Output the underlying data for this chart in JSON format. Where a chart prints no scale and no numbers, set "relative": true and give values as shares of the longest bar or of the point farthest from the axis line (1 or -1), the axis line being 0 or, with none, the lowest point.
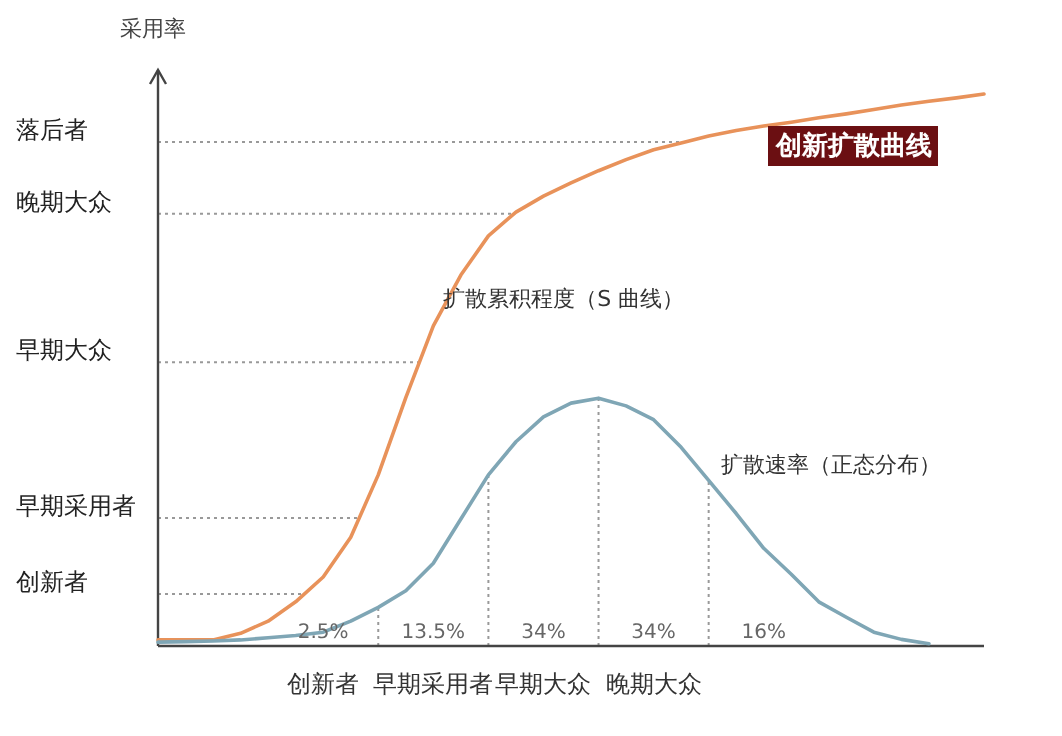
{
  "chart_data": {
    "type": "line",
    "title": "创新扩散曲线",
    "ylabel": "采用率",
    "relative": true,
    "legend": false,
    "marker": "none",
    "line_style": "solid",
    "categories": [
      null,
      null,
      null,
      null,
      null,
      null,
      "创新者",
      null,
      null,
      null,
      "早期采用者",
      null,
      null,
      null,
      "早期大众",
      null,
      null,
      null,
      "晚期大众",
      null,
      null,
      null,
      null,
      null,
      null,
      null,
      null,
      null,
      null,
      null,
      null
    ],
    "series": [
      {
        "name": "扩散累积程度（S 曲线）",
        "color": "#e8925a",
        "values": [
          0.011,
          0.011,
          0.011,
          0.023,
          0.045,
          0.08,
          0.125,
          0.197,
          0.31,
          0.45,
          0.58,
          0.672,
          0.743,
          0.786,
          0.815,
          0.839,
          0.861,
          0.881,
          0.899,
          0.911,
          0.924,
          0.934,
          0.942,
          0.949,
          0.957,
          0.964,
          0.972,
          0.98,
          0.987,
          0.993,
          1.0
        ]
      },
      {
        "name": "扩散速率（正态分布）",
        "color": "#7fa6b5",
        "values": [
          0.007,
          0.008,
          0.009,
          0.011,
          0.015,
          0.019,
          0.025,
          0.045,
          0.07,
          0.1,
          0.15,
          0.23,
          0.31,
          0.37,
          0.415,
          0.44,
          0.449,
          0.435,
          0.41,
          0.36,
          0.3,
          0.24,
          0.177,
          0.13,
          0.08,
          0.052,
          0.025,
          0.012,
          0.004,
          null,
          null
        ]
      }
    ],
    "ref_lines": [
      {
        "axis": "y",
        "value": 0.094,
        "label": "创新者"
      },
      {
        "axis": "y",
        "value": 0.232,
        "label": "早期采用者"
      },
      {
        "axis": "y",
        "value": 0.514,
        "label": "早期大众"
      },
      {
        "axis": "y",
        "value": 0.783,
        "label": "晚期大众"
      },
      {
        "axis": "y",
        "value": 0.913,
        "label": "落后者"
      }
    ],
    "annotations": [
      "2.5%",
      "13.5%",
      "34%",
      "34%",
      "16%"
    ]
  }
}
